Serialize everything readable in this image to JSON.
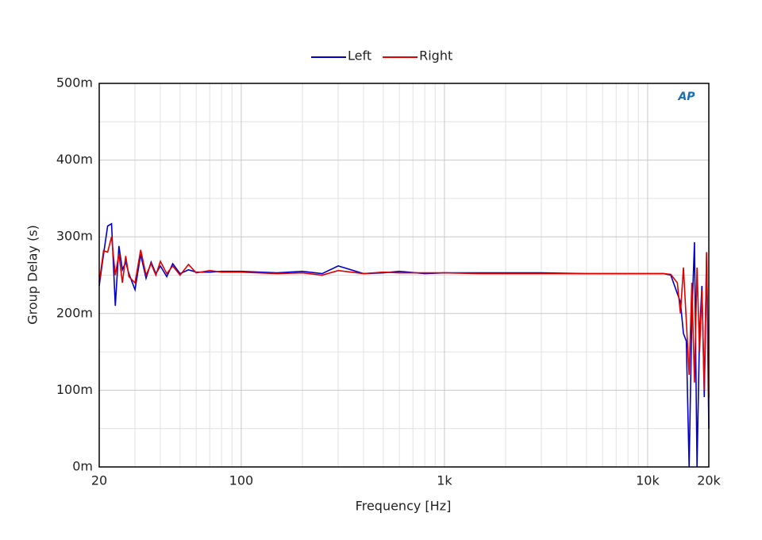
{
  "chart_data": {
    "type": "line",
    "x_label": "Frequency [Hz]",
    "y_label": "Group Delay (s)",
    "logo": "AP",
    "x_log": true,
    "grid": true,
    "legend": "top",
    "xlim": [
      20,
      20000
    ],
    "ylim": [
      0,
      0.5
    ],
    "xticks": [
      20,
      100,
      {
        "value": 1000,
        "label": "1k"
      },
      {
        "value": 10000,
        "label": "10k"
      },
      {
        "value": 20000,
        "label": "20k"
      }
    ],
    "yticks": [
      {
        "value": 0,
        "label": "0m"
      },
      {
        "value": 0.1,
        "label": "100m"
      },
      {
        "value": 0.2,
        "label": "200m"
      },
      {
        "value": 0.3,
        "label": "300m"
      },
      {
        "value": 0.4,
        "label": "400m"
      },
      {
        "value": 0.5,
        "label": "500m"
      }
    ],
    "x": [
      20,
      21,
      22,
      23,
      24,
      25,
      26,
      27,
      28,
      30,
      32,
      34,
      36,
      38,
      40,
      43,
      46,
      50,
      55,
      60,
      70,
      80,
      100,
      150,
      200,
      250,
      300,
      400,
      500,
      600,
      800,
      1000,
      1500,
      2000,
      3000,
      5000,
      8000,
      12000,
      13000,
      14000,
      14500,
      15000,
      15500,
      16000,
      16500,
      17000,
      17500,
      18000,
      18500,
      19000,
      19500,
      20000
    ],
    "series": [
      {
        "name": "Left",
        "color": "#0000cc",
        "values": [
          0.236,
          0.277,
          0.314,
          0.317,
          0.21,
          0.288,
          0.257,
          0.267,
          0.252,
          0.231,
          0.277,
          0.246,
          0.267,
          0.252,
          0.262,
          0.248,
          0.265,
          0.252,
          0.257,
          0.254,
          0.254,
          0.255,
          0.255,
          0.253,
          0.255,
          0.252,
          0.262,
          0.252,
          0.253,
          0.255,
          0.252,
          0.253,
          0.253,
          0.253,
          0.253,
          0.252,
          0.252,
          0.252,
          0.25,
          0.226,
          0.215,
          0.174,
          0.164,
          0,
          0.195,
          0.293,
          0,
          0.174,
          0.236,
          0.091,
          0.277,
          0.05
        ]
      },
      {
        "name": "Right",
        "color": "#e00000",
        "values": [
          0.24,
          0.282,
          0.28,
          0.3,
          0.25,
          0.278,
          0.24,
          0.275,
          0.248,
          0.24,
          0.283,
          0.25,
          0.265,
          0.25,
          0.268,
          0.252,
          0.262,
          0.25,
          0.264,
          0.253,
          0.256,
          0.254,
          0.254,
          0.252,
          0.253,
          0.25,
          0.256,
          0.252,
          0.254,
          0.253,
          0.253,
          0.253,
          0.252,
          0.252,
          0.252,
          0.252,
          0.252,
          0.252,
          0.251,
          0.24,
          0.2,
          0.26,
          0.19,
          0.12,
          0.24,
          0.11,
          0.26,
          0.15,
          0.23,
          0.1,
          0.28,
          0.09
        ]
      }
    ]
  }
}
